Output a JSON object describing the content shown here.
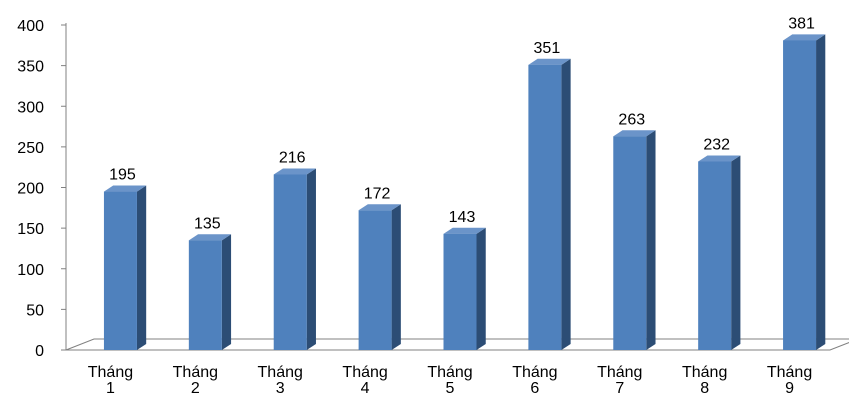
{
  "chart_data": {
    "type": "bar",
    "categories": [
      [
        "Tháng",
        "1"
      ],
      [
        "Tháng",
        "2"
      ],
      [
        "Tháng",
        "3"
      ],
      [
        "Tháng",
        "4"
      ],
      [
        "Tháng",
        "5"
      ],
      [
        "Tháng",
        "6"
      ],
      [
        "Tháng",
        "7"
      ],
      [
        "Tháng",
        "8"
      ],
      [
        "Tháng",
        "9"
      ]
    ],
    "values": [
      195,
      135,
      216,
      172,
      143,
      351,
      263,
      232,
      381
    ],
    "yticks": [
      0,
      50,
      100,
      150,
      200,
      250,
      300,
      350,
      400
    ],
    "ylim": [
      0,
      400
    ],
    "grid": false,
    "legend": "none",
    "style": "3d-column",
    "colors": {
      "bar_front": "#4f81bd",
      "bar_side": "#2c4d75",
      "bar_top": "#6b94c9",
      "axis": "#808080"
    }
  }
}
